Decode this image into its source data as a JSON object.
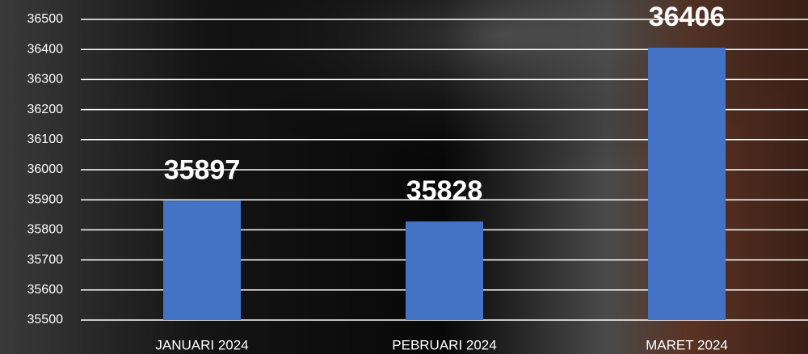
{
  "chart_data": {
    "type": "bar",
    "categories": [
      "JANUARI 2024",
      "PEBRUARI 2024",
      "MARET 2024"
    ],
    "values": [
      35897,
      35828,
      36406
    ],
    "color": "#4472c4",
    "ylim": [
      35500,
      36500
    ],
    "yticks": [
      35500,
      35600,
      35700,
      35800,
      35900,
      36000,
      36100,
      36200,
      36300,
      36400,
      36500
    ],
    "grid": true
  }
}
